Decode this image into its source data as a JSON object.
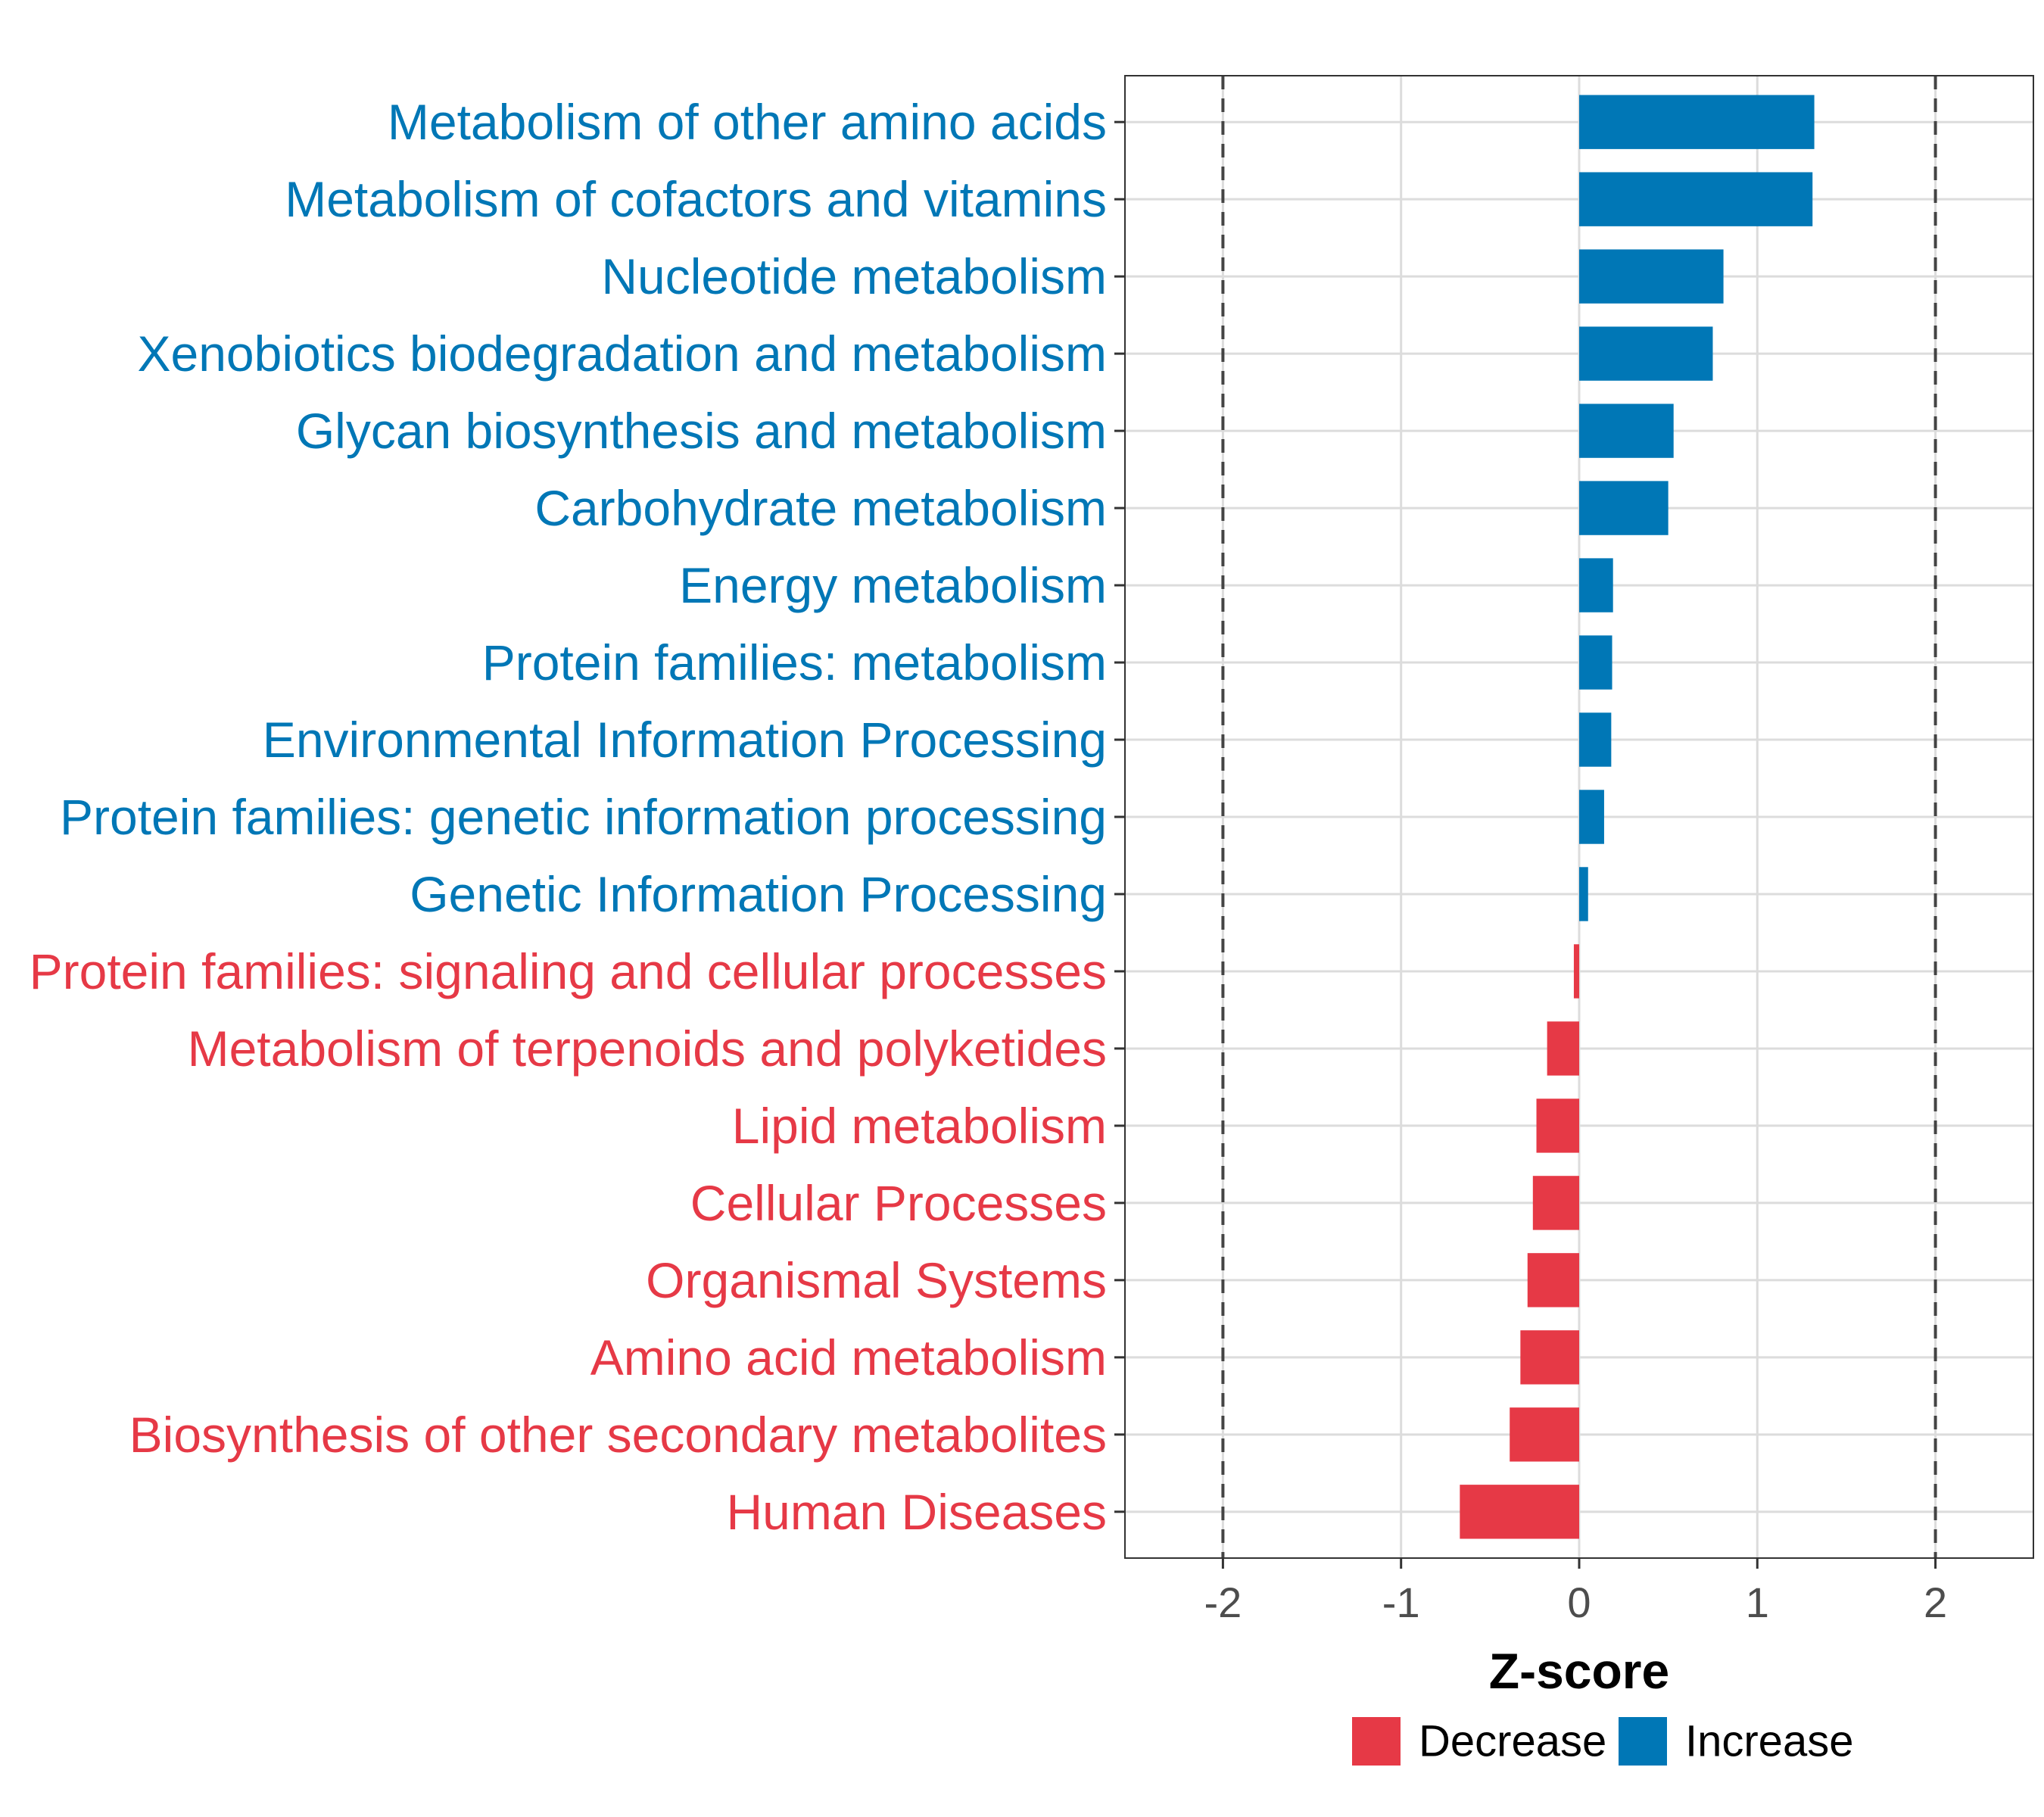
{
  "chart_data": {
    "type": "bar",
    "orientation": "horizontal",
    "title": "",
    "xlabel": "Z-score",
    "ylabel": "",
    "xlim": [
      -2.55,
      2.55
    ],
    "xticks": [
      -2,
      -1,
      0,
      1,
      2
    ],
    "xtick_labels": [
      "-2",
      "-1",
      "0",
      "1",
      "2"
    ],
    "reference_lines": [
      -2,
      2
    ],
    "grid": true,
    "legend_position": "bottom",
    "categories": [
      "Metabolism of other amino acids",
      "Metabolism of cofactors and vitamins",
      "Nucleotide metabolism",
      "Xenobiotics biodegradation and metabolism",
      "Glycan biosynthesis and metabolism",
      "Carbohydrate metabolism",
      "Energy metabolism",
      "Protein families: metabolism",
      "Environmental Information Processing",
      "Protein families: genetic information processing",
      "Genetic Information Processing",
      "Protein families: signaling and cellular processes",
      "Metabolism of terpenoids and polyketides",
      "Lipid metabolism",
      "Cellular Processes",
      "Organismal Systems",
      "Amino acid metabolism",
      "Biosynthesis of other secondary metabolites",
      "Human Diseases"
    ],
    "values": [
      1.32,
      1.31,
      0.81,
      0.75,
      0.53,
      0.5,
      0.19,
      0.185,
      0.18,
      0.14,
      0.05,
      -0.03,
      -0.18,
      -0.24,
      -0.26,
      -0.29,
      -0.33,
      -0.39,
      -0.67
    ],
    "groups": [
      "Increase",
      "Increase",
      "Increase",
      "Increase",
      "Increase",
      "Increase",
      "Increase",
      "Increase",
      "Increase",
      "Increase",
      "Increase",
      "Decrease",
      "Decrease",
      "Decrease",
      "Decrease",
      "Decrease",
      "Decrease",
      "Decrease",
      "Decrease"
    ],
    "legend": [
      {
        "label": "Decrease",
        "color": "#E63946"
      },
      {
        "label": "Increase",
        "color": "#0077B6"
      }
    ]
  }
}
